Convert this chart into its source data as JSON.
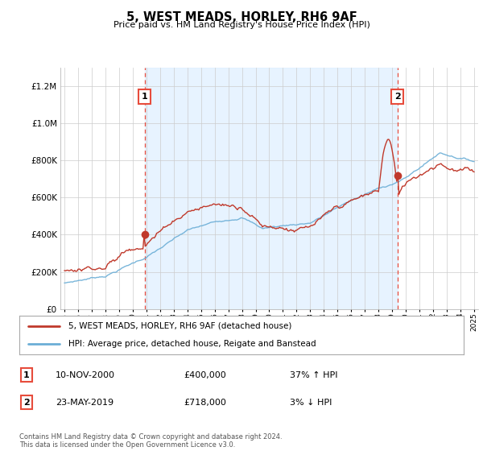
{
  "title": "5, WEST MEADS, HORLEY, RH6 9AF",
  "subtitle": "Price paid vs. HM Land Registry's House Price Index (HPI)",
  "legend_line1": "5, WEST MEADS, HORLEY, RH6 9AF (detached house)",
  "legend_line2": "HPI: Average price, detached house, Reigate and Banstead",
  "annotation1_label": "1",
  "annotation1_date": "10-NOV-2000",
  "annotation1_price": "£400,000",
  "annotation1_hpi": "37% ↑ HPI",
  "annotation2_label": "2",
  "annotation2_date": "23-MAY-2019",
  "annotation2_price": "£718,000",
  "annotation2_hpi": "3% ↓ HPI",
  "footer": "Contains HM Land Registry data © Crown copyright and database right 2024.\nThis data is licensed under the Open Government Licence v3.0.",
  "hpi_color": "#6baed6",
  "price_color": "#c0392b",
  "vline_color": "#e74c3c",
  "shade_color": "#ddeeff",
  "background_color": "#ffffff",
  "plot_bg_color": "#ffffff",
  "ylim": [
    0,
    1300000
  ],
  "yticks": [
    0,
    200000,
    400000,
    600000,
    800000,
    1000000,
    1200000
  ],
  "sale1_year": 2000.87,
  "sale1_price": 400000,
  "sale2_year": 2019.39,
  "sale2_price": 718000,
  "xstart": 1995,
  "xend": 2025
}
